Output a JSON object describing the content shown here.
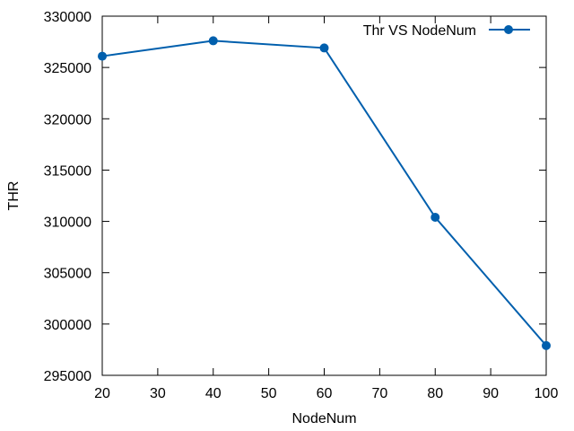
{
  "chart_data": {
    "type": "line",
    "title": "",
    "xlabel": "NodeNum",
    "ylabel": "THR",
    "x": [
      20,
      40,
      60,
      80,
      100
    ],
    "series": [
      {
        "name": "Thr VS NodeNum",
        "values": [
          326100,
          327600,
          326900,
          310400,
          297900
        ],
        "color": "#005fad",
        "marker": "circle"
      }
    ],
    "xlim": [
      20,
      100
    ],
    "ylim": [
      295000,
      330000
    ],
    "xticks": [
      20,
      30,
      40,
      50,
      60,
      70,
      80,
      90,
      100
    ],
    "yticks": [
      295000,
      300000,
      305000,
      310000,
      315000,
      320000,
      325000,
      330000
    ],
    "grid": false,
    "legend_position": "top-right"
  }
}
